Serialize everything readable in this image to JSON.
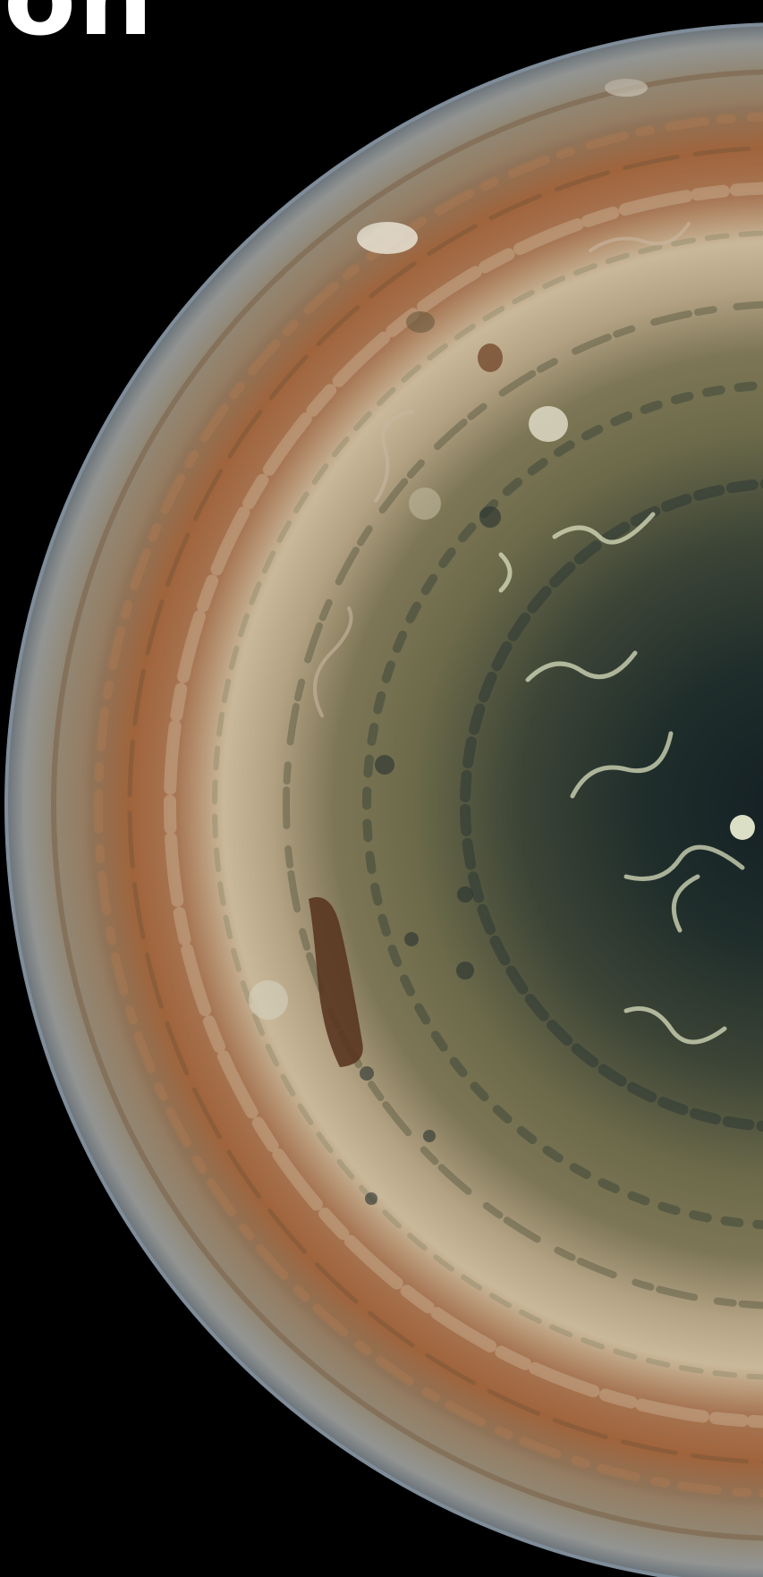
{
  "caption": {
    "text": "on"
  },
  "image": {
    "subject": "planet-hemisphere",
    "colors": {
      "background": "#000000",
      "limb_glow": "#b9c0c4",
      "outer_band": "#9a8a72",
      "rust_band": "#a0643c",
      "pale_zone": "#c9b99a",
      "olive_zone": "#6f6a4c",
      "pole_dark": "#1f2a2a",
      "storm_light": "#e8eccf"
    }
  }
}
